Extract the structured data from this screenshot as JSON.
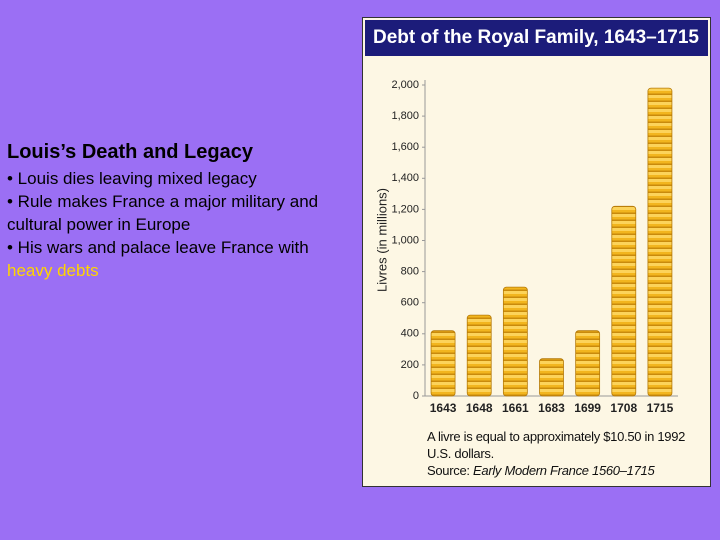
{
  "slide": {
    "heading": "Louis’s Death and Legacy",
    "bullets": [
      "• Louis dies leaving mixed legacy",
      "• Rule makes France a major military and cultural power in Europe",
      "• His wars and palace leave France with"
    ],
    "highlight": "heavy debts"
  },
  "chart_data": {
    "type": "bar",
    "title": "Debt of the Royal Family, 1643–1715",
    "ylabel": "Livres (in millions)",
    "categories": [
      "1643",
      "1648",
      "1661",
      "1683",
      "1699",
      "1708",
      "1715"
    ],
    "values": [
      420,
      520,
      700,
      240,
      420,
      1220,
      1980
    ],
    "ylim": [
      0,
      2000
    ],
    "yticks": [
      0,
      200,
      400,
      600,
      800,
      {
        "value": 1000,
        "label": "1,000"
      },
      {
        "value": 1200,
        "label": "1,200"
      },
      {
        "value": 1400,
        "label": "1,400"
      },
      {
        "value": 1600,
        "label": "1,600"
      },
      {
        "value": 1800,
        "label": "1,800"
      },
      {
        "value": 2000,
        "label": "2,000"
      }
    ],
    "note": "A livre is equal to approximately $10.50 in 1992 U.S. dollars.",
    "source_label": "Source:",
    "source": "Early Modern France 1560–1715"
  }
}
